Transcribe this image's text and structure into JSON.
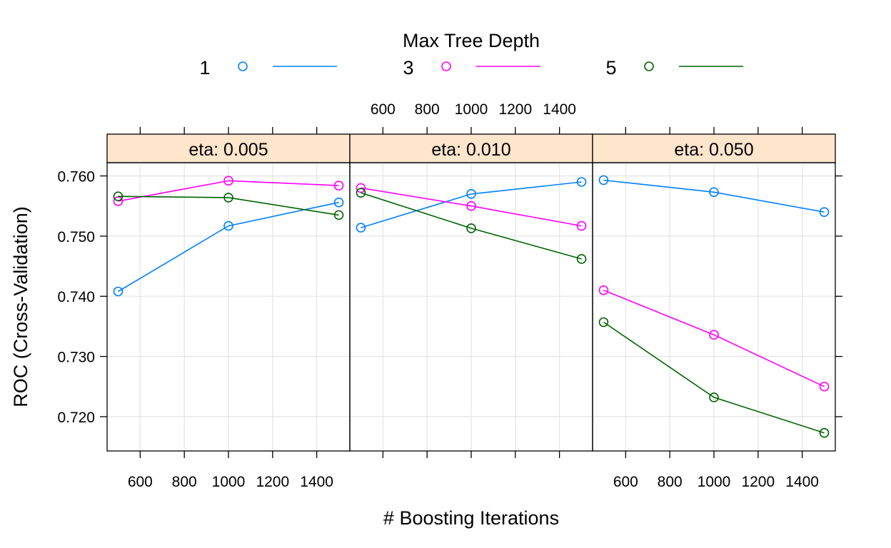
{
  "chart_data": {
    "type": "line",
    "layout": "trellis panels",
    "legend": {
      "title": "Max Tree Depth",
      "position": "top"
    },
    "xlabel": "# Boosting Iterations",
    "ylabel": "ROC (Cross-Validation)",
    "xlim": [
      450,
      1550
    ],
    "ylim": [
      0.7143,
      0.7622
    ],
    "x_ticks": [
      600,
      800,
      1000,
      1200,
      1400
    ],
    "y_ticks": [
      0.72,
      0.73,
      0.74,
      0.75,
      0.76
    ],
    "y_tick_labels": [
      "0.720",
      "0.730",
      "0.740",
      "0.750",
      "0.760"
    ],
    "grid": true,
    "x": [
      500,
      1000,
      1500
    ],
    "series_meta": [
      {
        "name": "1",
        "color": "#0080ff"
      },
      {
        "name": "3",
        "color": "#ff00ff"
      },
      {
        "name": "5",
        "color": "#006400"
      }
    ],
    "panels": [
      {
        "strip": "eta: 0.005",
        "series": [
          {
            "name": "1",
            "values": [
              0.7408,
              0.7517,
              0.7556
            ]
          },
          {
            "name": "3",
            "values": [
              0.7558,
              0.7592,
              0.7584
            ]
          },
          {
            "name": "5",
            "values": [
              0.7566,
              0.7564,
              0.7535
            ]
          }
        ]
      },
      {
        "strip": "eta: 0.010",
        "series": [
          {
            "name": "1",
            "values": [
              0.7514,
              0.757,
              0.759
            ]
          },
          {
            "name": "3",
            "values": [
              0.758,
              0.755,
              0.7517
            ]
          },
          {
            "name": "5",
            "values": [
              0.7572,
              0.7513,
              0.7462
            ]
          }
        ]
      },
      {
        "strip": "eta: 0.050",
        "series": [
          {
            "name": "1",
            "values": [
              0.7593,
              0.7573,
              0.754
            ]
          },
          {
            "name": "3",
            "values": [
              0.741,
              0.7336,
              0.725
            ]
          },
          {
            "name": "5",
            "values": [
              0.7357,
              0.7232,
              0.7173
            ]
          }
        ]
      }
    ]
  }
}
